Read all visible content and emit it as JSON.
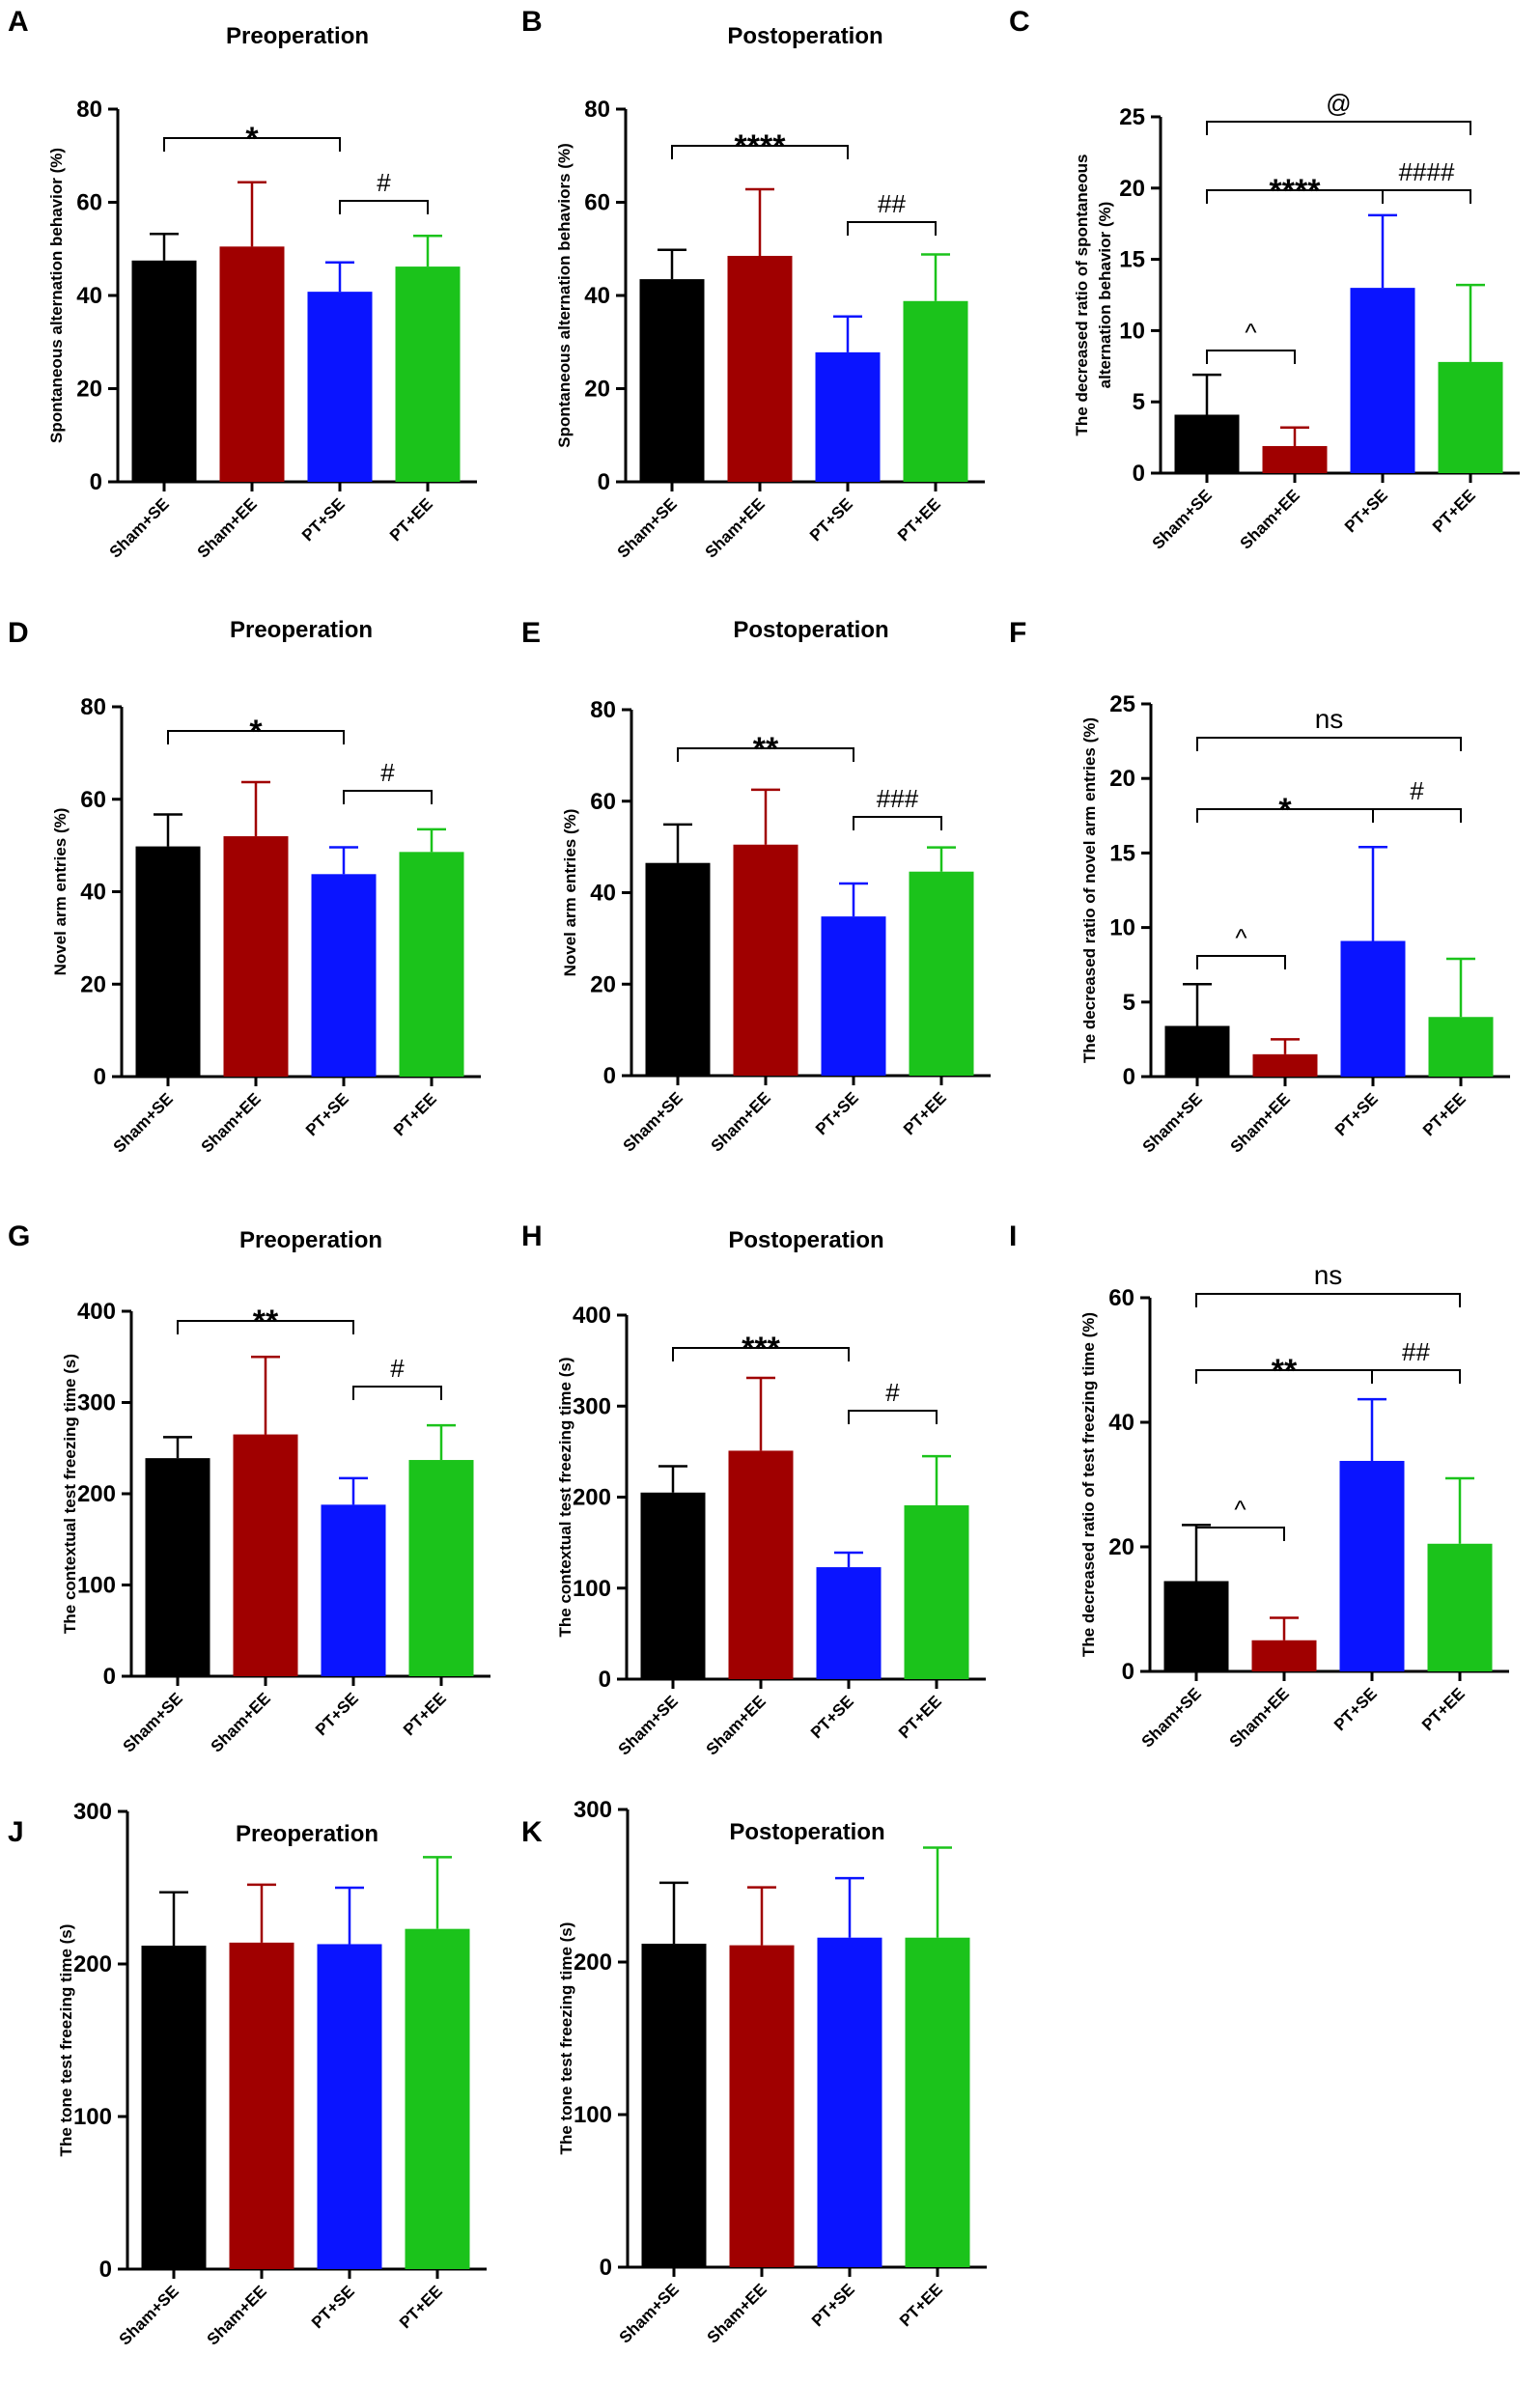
{
  "colors": {
    "Sham+SE": "#000000",
    "Sham+EE": "#a00000",
    "PT+SE": "#0a14ff",
    "PT+EE": "#1bc31b"
  },
  "chart_data": [
    {
      "panel": "A",
      "type": "bar",
      "title": "Preoperation",
      "ylabel": "Spontaneous alternation behavior (%)",
      "categories": [
        "Sham+SE",
        "Sham+EE",
        "PT+SE",
        "PT+EE"
      ],
      "values": [
        47.5,
        50.5,
        40.8,
        46.2
      ],
      "errors": [
        5.7,
        13.8,
        6.3,
        6.6
      ],
      "ylim": [
        0,
        80
      ],
      "yticks": [
        "0",
        "20",
        "40",
        "60",
        "80"
      ],
      "annotations": [
        {
          "groups": [
            0,
            2
          ],
          "label": "*"
        },
        {
          "groups": [
            2,
            3
          ],
          "label": "#"
        }
      ]
    },
    {
      "panel": "B",
      "type": "bar",
      "title": "Postoperation",
      "ylabel": "Spontaneous alternation behaviors (%)",
      "categories": [
        "Sham+SE",
        "Sham+EE",
        "PT+SE",
        "PT+EE"
      ],
      "values": [
        43.5,
        48.5,
        27.8,
        38.8
      ],
      "errors": [
        6.3,
        14.3,
        7.7,
        10.0
      ],
      "ylim": [
        0,
        80
      ],
      "yticks": [
        "0",
        "20",
        "40",
        "60",
        "80"
      ],
      "annotations": [
        {
          "groups": [
            0,
            2
          ],
          "label": "****"
        },
        {
          "groups": [
            2,
            3
          ],
          "label": "##"
        }
      ]
    },
    {
      "panel": "C",
      "type": "bar",
      "title": "",
      "ylabel": [
        "The decreased ratio of  spontaneous",
        "alternation behavior (%)"
      ],
      "categories": [
        "Sham+SE",
        "Sham+EE",
        "PT+SE",
        "PT+EE"
      ],
      "values": [
        4.1,
        1.9,
        13.0,
        7.8
      ],
      "errors": [
        2.8,
        1.3,
        5.1,
        5.4
      ],
      "ylim": [
        0,
        25
      ],
      "yticks": [
        "0",
        "5",
        "10",
        "15",
        "20",
        "25"
      ],
      "annotations": [
        {
          "groups": [
            0,
            1
          ],
          "label": "^"
        },
        {
          "groups": [
            0,
            2
          ],
          "label": "****"
        },
        {
          "groups": [
            2,
            3
          ],
          "label": "####"
        },
        {
          "groups": [
            0,
            3
          ],
          "label": "@"
        }
      ]
    },
    {
      "panel": "D",
      "type": "bar",
      "title": "Preoperation",
      "ylabel": "Novel arm entries (%)",
      "categories": [
        "Sham+SE",
        "Sham+EE",
        "PT+SE",
        "PT+EE"
      ],
      "values": [
        49.8,
        52.0,
        43.8,
        48.6
      ],
      "errors": [
        6.9,
        11.7,
        5.8,
        4.9
      ],
      "ylim": [
        0,
        80
      ],
      "yticks": [
        "0",
        "20",
        "40",
        "60",
        "80"
      ],
      "annotations": [
        {
          "groups": [
            0,
            2
          ],
          "label": "*"
        },
        {
          "groups": [
            2,
            3
          ],
          "label": "#"
        }
      ]
    },
    {
      "panel": "E",
      "type": "bar",
      "title": "Postoperation",
      "ylabel": "Novel arm entries (%)",
      "categories": [
        "Sham+SE",
        "Sham+EE",
        "PT+SE",
        "PT+EE"
      ],
      "values": [
        46.5,
        50.5,
        34.8,
        44.6
      ],
      "errors": [
        8.4,
        12.0,
        7.2,
        5.3
      ],
      "ylim": [
        0,
        80
      ],
      "yticks": [
        "0",
        "20",
        "40",
        "60",
        "80"
      ],
      "annotations": [
        {
          "groups": [
            0,
            2
          ],
          "label": "**"
        },
        {
          "groups": [
            2,
            3
          ],
          "label": "###"
        }
      ]
    },
    {
      "panel": "F",
      "type": "bar",
      "title": "",
      "ylabel": "The decreased ratio of  novel arm entries (%)",
      "categories": [
        "Sham+SE",
        "Sham+EE",
        "PT+SE",
        "PT+EE"
      ],
      "values": [
        3.4,
        1.5,
        9.1,
        4.0
      ],
      "errors": [
        2.8,
        1.0,
        6.3,
        3.9
      ],
      "ylim": [
        0,
        25
      ],
      "yticks": [
        "0",
        "5",
        "10",
        "15",
        "20",
        "25"
      ],
      "annotations": [
        {
          "groups": [
            0,
            1
          ],
          "label": "^"
        },
        {
          "groups": [
            0,
            2
          ],
          "label": "*"
        },
        {
          "groups": [
            2,
            3
          ],
          "label": "#"
        },
        {
          "groups": [
            0,
            3
          ],
          "label": "ns"
        }
      ]
    },
    {
      "panel": "G",
      "type": "bar",
      "title": "Preoperation",
      "ylabel": "The contextual  test freezing time (s)",
      "categories": [
        "Sham+SE",
        "Sham+EE",
        "PT+SE",
        "PT+EE"
      ],
      "values": [
        239,
        265,
        188,
        237
      ],
      "errors": [
        23,
        85,
        29,
        38
      ],
      "ylim": [
        0,
        400
      ],
      "yticks": [
        "0",
        "100",
        "200",
        "300",
        "400"
      ],
      "annotations": [
        {
          "groups": [
            0,
            2
          ],
          "label": "**"
        },
        {
          "groups": [
            2,
            3
          ],
          "label": "#"
        }
      ]
    },
    {
      "panel": "H",
      "type": "bar",
      "title": "Postoperation",
      "ylabel": "The contextual test freezing time (s)",
      "categories": [
        "Sham+SE",
        "Sham+EE",
        "PT+SE",
        "PT+EE"
      ],
      "values": [
        205,
        251,
        123,
        191
      ],
      "errors": [
        29,
        80,
        16,
        54
      ],
      "ylim": [
        0,
        400
      ],
      "yticks": [
        "0",
        "100",
        "200",
        "300",
        "400"
      ],
      "annotations": [
        {
          "groups": [
            0,
            2
          ],
          "label": "***"
        },
        {
          "groups": [
            2,
            3
          ],
          "label": "#"
        }
      ]
    },
    {
      "panel": "I",
      "type": "bar",
      "title": "",
      "ylabel": "The decreased ratio of test freezing time (%)",
      "categories": [
        "Sham+SE",
        "Sham+EE",
        "PT+SE",
        "PT+EE"
      ],
      "values": [
        14.5,
        5.0,
        33.8,
        20.5
      ],
      "errors": [
        9.0,
        3.6,
        9.9,
        10.5
      ],
      "ylim": [
        0,
        60
      ],
      "yticks": [
        "0",
        "20",
        "40",
        "60"
      ],
      "annotations": [
        {
          "groups": [
            0,
            1
          ],
          "label": "^"
        },
        {
          "groups": [
            0,
            2
          ],
          "label": "**"
        },
        {
          "groups": [
            2,
            3
          ],
          "label": "##"
        },
        {
          "groups": [
            0,
            3
          ],
          "label": "ns"
        }
      ]
    },
    {
      "panel": "J",
      "type": "bar",
      "title": "Preoperation",
      "ylabel": "The tone test freezing time (s)",
      "categories": [
        "Sham+SE",
        "Sham+EE",
        "PT+SE",
        "PT+EE"
      ],
      "values": [
        212,
        214,
        213,
        223
      ],
      "errors": [
        35,
        38,
        37,
        47
      ],
      "ylim": [
        0,
        300
      ],
      "yticks": [
        "0",
        "100",
        "200",
        "300"
      ],
      "annotations": []
    },
    {
      "panel": "K",
      "type": "bar",
      "title": "Postoperation",
      "ylabel": "The tone test freezing time (s)",
      "categories": [
        "Sham+SE",
        "Sham+EE",
        "PT+SE",
        "PT+EE"
      ],
      "values": [
        212,
        211,
        216,
        216
      ],
      "errors": [
        40,
        38,
        39,
        59
      ],
      "ylim": [
        0,
        300
      ],
      "yticks": [
        "0",
        "100",
        "200",
        "300"
      ],
      "annotations": []
    }
  ]
}
